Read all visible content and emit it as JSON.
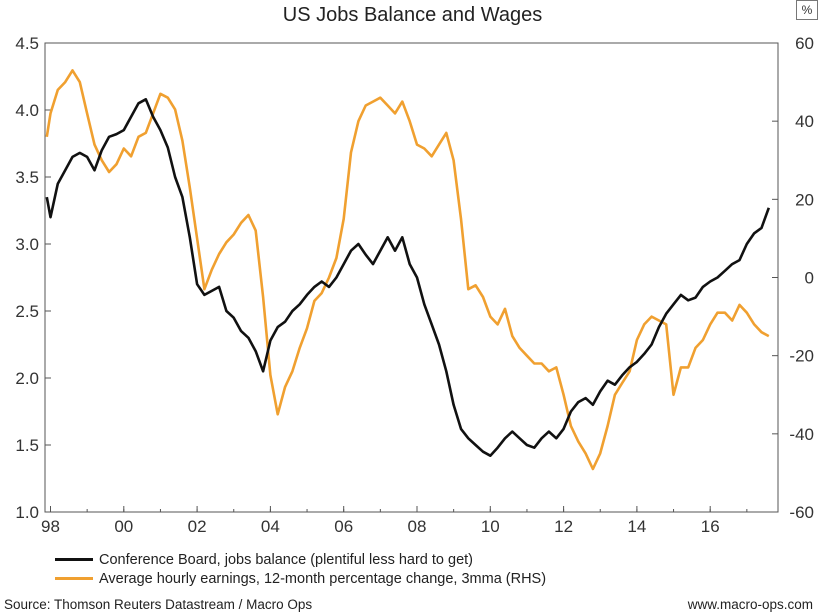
{
  "header": {
    "title": "US Jobs Balance and Wages",
    "unit_badge": "%"
  },
  "legend": [
    {
      "label": "Conference Board, jobs balance (plentiful less hard to get)",
      "color": "#111111"
    },
    {
      "label": "Average hourly earnings, 12-month percentage change, 3mma (RHS)",
      "color": "#f0a030"
    }
  ],
  "footer": {
    "source": "Source: Thomson Reuters Datastream / Macro Ops",
    "url": "www.macro-ops.com"
  },
  "chart_data": {
    "type": "line",
    "x_ticks": [
      {
        "value": 1998,
        "label": "98"
      },
      {
        "value": 2000,
        "label": "00"
      },
      {
        "value": 2002,
        "label": "02"
      },
      {
        "value": 2004,
        "label": "04"
      },
      {
        "value": 2006,
        "label": "06"
      },
      {
        "value": 2008,
        "label": "08"
      },
      {
        "value": 2010,
        "label": "10"
      },
      {
        "value": 2012,
        "label": "12"
      },
      {
        "value": 2014,
        "label": "14"
      },
      {
        "value": 2016,
        "label": "16"
      }
    ],
    "xlim": [
      1997.85,
      2017.85
    ],
    "y_left": {
      "lim": [
        1.0,
        4.5
      ],
      "ticks": [
        "1.0",
        "1.5",
        "2.0",
        "2.5",
        "3.0",
        "3.5",
        "4.0",
        "4.5"
      ]
    },
    "y_right": {
      "lim": [
        -60,
        60
      ],
      "ticks": [
        "-60",
        "-40",
        "-20",
        "0",
        "20",
        "40",
        "60"
      ]
    },
    "series": [
      {
        "name": "Conference Board, jobs balance (plentiful less hard to get)",
        "axis": "left",
        "color": "#111111",
        "points": [
          [
            1997.9,
            3.35
          ],
          [
            1998.0,
            3.2
          ],
          [
            1998.2,
            3.45
          ],
          [
            1998.4,
            3.55
          ],
          [
            1998.6,
            3.65
          ],
          [
            1998.8,
            3.68
          ],
          [
            1999.0,
            3.65
          ],
          [
            1999.2,
            3.55
          ],
          [
            1999.4,
            3.7
          ],
          [
            1999.6,
            3.8
          ],
          [
            1999.8,
            3.82
          ],
          [
            2000.0,
            3.85
          ],
          [
            2000.2,
            3.95
          ],
          [
            2000.4,
            4.05
          ],
          [
            2000.6,
            4.08
          ],
          [
            2000.8,
            3.95
          ],
          [
            2001.0,
            3.85
          ],
          [
            2001.2,
            3.72
          ],
          [
            2001.4,
            3.5
          ],
          [
            2001.6,
            3.35
          ],
          [
            2001.8,
            3.05
          ],
          [
            2002.0,
            2.7
          ],
          [
            2002.2,
            2.62
          ],
          [
            2002.4,
            2.65
          ],
          [
            2002.6,
            2.68
          ],
          [
            2002.8,
            2.5
          ],
          [
            2003.0,
            2.45
          ],
          [
            2003.2,
            2.35
          ],
          [
            2003.4,
            2.3
          ],
          [
            2003.6,
            2.2
          ],
          [
            2003.8,
            2.05
          ],
          [
            2004.0,
            2.28
          ],
          [
            2004.2,
            2.38
          ],
          [
            2004.4,
            2.42
          ],
          [
            2004.6,
            2.5
          ],
          [
            2004.8,
            2.55
          ],
          [
            2005.0,
            2.62
          ],
          [
            2005.2,
            2.68
          ],
          [
            2005.4,
            2.72
          ],
          [
            2005.6,
            2.68
          ],
          [
            2005.8,
            2.75
          ],
          [
            2006.0,
            2.85
          ],
          [
            2006.2,
            2.95
          ],
          [
            2006.4,
            3.0
          ],
          [
            2006.6,
            2.92
          ],
          [
            2006.8,
            2.85
          ],
          [
            2007.0,
            2.95
          ],
          [
            2007.2,
            3.05
          ],
          [
            2007.4,
            2.95
          ],
          [
            2007.6,
            3.05
          ],
          [
            2007.8,
            2.85
          ],
          [
            2008.0,
            2.75
          ],
          [
            2008.2,
            2.55
          ],
          [
            2008.4,
            2.4
          ],
          [
            2008.6,
            2.25
          ],
          [
            2008.8,
            2.05
          ],
          [
            2009.0,
            1.8
          ],
          [
            2009.2,
            1.62
          ],
          [
            2009.4,
            1.55
          ],
          [
            2009.6,
            1.5
          ],
          [
            2009.8,
            1.45
          ],
          [
            2010.0,
            1.42
          ],
          [
            2010.2,
            1.48
          ],
          [
            2010.4,
            1.55
          ],
          [
            2010.6,
            1.6
          ],
          [
            2010.8,
            1.55
          ],
          [
            2011.0,
            1.5
          ],
          [
            2011.2,
            1.48
          ],
          [
            2011.4,
            1.55
          ],
          [
            2011.6,
            1.6
          ],
          [
            2011.8,
            1.55
          ],
          [
            2012.0,
            1.62
          ],
          [
            2012.2,
            1.75
          ],
          [
            2012.4,
            1.82
          ],
          [
            2012.6,
            1.85
          ],
          [
            2012.8,
            1.8
          ],
          [
            2013.0,
            1.9
          ],
          [
            2013.2,
            1.98
          ],
          [
            2013.4,
            1.95
          ],
          [
            2013.6,
            2.02
          ],
          [
            2013.8,
            2.08
          ],
          [
            2014.0,
            2.12
          ],
          [
            2014.2,
            2.18
          ],
          [
            2014.4,
            2.25
          ],
          [
            2014.6,
            2.38
          ],
          [
            2014.8,
            2.48
          ],
          [
            2015.0,
            2.55
          ],
          [
            2015.2,
            2.62
          ],
          [
            2015.4,
            2.58
          ],
          [
            2015.6,
            2.6
          ],
          [
            2015.8,
            2.68
          ],
          [
            2016.0,
            2.72
          ],
          [
            2016.2,
            2.75
          ],
          [
            2016.4,
            2.8
          ],
          [
            2016.6,
            2.85
          ],
          [
            2016.8,
            2.88
          ],
          [
            2017.0,
            3.0
          ],
          [
            2017.2,
            3.08
          ],
          [
            2017.4,
            3.12
          ],
          [
            2017.6,
            3.27
          ]
        ]
      },
      {
        "name": "Average hourly earnings, 12-month percentage change, 3mma (RHS)",
        "axis": "right",
        "color": "#f0a030",
        "points": [
          [
            1997.9,
            36
          ],
          [
            1998.0,
            42
          ],
          [
            1998.2,
            48
          ],
          [
            1998.4,
            50
          ],
          [
            1998.6,
            53
          ],
          [
            1998.8,
            50
          ],
          [
            1999.0,
            42
          ],
          [
            1999.2,
            34
          ],
          [
            1999.4,
            30
          ],
          [
            1999.6,
            27
          ],
          [
            1999.8,
            29
          ],
          [
            2000.0,
            33
          ],
          [
            2000.2,
            31
          ],
          [
            2000.4,
            36
          ],
          [
            2000.6,
            37
          ],
          [
            2000.8,
            42
          ],
          [
            2001.0,
            47
          ],
          [
            2001.2,
            46
          ],
          [
            2001.4,
            43
          ],
          [
            2001.6,
            35
          ],
          [
            2001.8,
            23
          ],
          [
            2002.0,
            10
          ],
          [
            2002.2,
            -3
          ],
          [
            2002.4,
            2
          ],
          [
            2002.6,
            6
          ],
          [
            2002.8,
            9
          ],
          [
            2003.0,
            11
          ],
          [
            2003.2,
            14
          ],
          [
            2003.4,
            16
          ],
          [
            2003.6,
            12
          ],
          [
            2003.8,
            -5
          ],
          [
            2004.0,
            -25
          ],
          [
            2004.2,
            -35
          ],
          [
            2004.4,
            -28
          ],
          [
            2004.6,
            -24
          ],
          [
            2004.8,
            -18
          ],
          [
            2005.0,
            -13
          ],
          [
            2005.2,
            -6
          ],
          [
            2005.4,
            -4
          ],
          [
            2005.6,
            0
          ],
          [
            2005.8,
            5
          ],
          [
            2006.0,
            15
          ],
          [
            2006.2,
            32
          ],
          [
            2006.4,
            40
          ],
          [
            2006.6,
            44
          ],
          [
            2006.8,
            45
          ],
          [
            2007.0,
            46
          ],
          [
            2007.2,
            44
          ],
          [
            2007.4,
            42
          ],
          [
            2007.6,
            45
          ],
          [
            2007.8,
            40
          ],
          [
            2008.0,
            34
          ],
          [
            2008.2,
            33
          ],
          [
            2008.4,
            31
          ],
          [
            2008.6,
            34
          ],
          [
            2008.8,
            37
          ],
          [
            2009.0,
            30
          ],
          [
            2009.2,
            15
          ],
          [
            2009.4,
            -3
          ],
          [
            2009.6,
            -2
          ],
          [
            2009.8,
            -5
          ],
          [
            2010.0,
            -10
          ],
          [
            2010.2,
            -12
          ],
          [
            2010.4,
            -8
          ],
          [
            2010.6,
            -15
          ],
          [
            2010.8,
            -18
          ],
          [
            2011.0,
            -20
          ],
          [
            2011.2,
            -22
          ],
          [
            2011.4,
            -22
          ],
          [
            2011.6,
            -24
          ],
          [
            2011.8,
            -23
          ],
          [
            2012.0,
            -30
          ],
          [
            2012.2,
            -38
          ],
          [
            2012.4,
            -42
          ],
          [
            2012.6,
            -45
          ],
          [
            2012.8,
            -49
          ],
          [
            2013.0,
            -45
          ],
          [
            2013.2,
            -38
          ],
          [
            2013.4,
            -30
          ],
          [
            2013.6,
            -27
          ],
          [
            2013.8,
            -24
          ],
          [
            2014.0,
            -16
          ],
          [
            2014.2,
            -12
          ],
          [
            2014.4,
            -10
          ],
          [
            2014.6,
            -11
          ],
          [
            2014.8,
            -12
          ],
          [
            2015.0,
            -30
          ],
          [
            2015.2,
            -23
          ],
          [
            2015.4,
            -23
          ],
          [
            2015.6,
            -18
          ],
          [
            2015.8,
            -16
          ],
          [
            2016.0,
            -12
          ],
          [
            2016.2,
            -9
          ],
          [
            2016.4,
            -9
          ],
          [
            2016.6,
            -11
          ],
          [
            2016.8,
            -7
          ],
          [
            2017.0,
            -9
          ],
          [
            2017.2,
            -12
          ],
          [
            2017.4,
            -14
          ],
          [
            2017.6,
            -15
          ]
        ]
      }
    ]
  }
}
